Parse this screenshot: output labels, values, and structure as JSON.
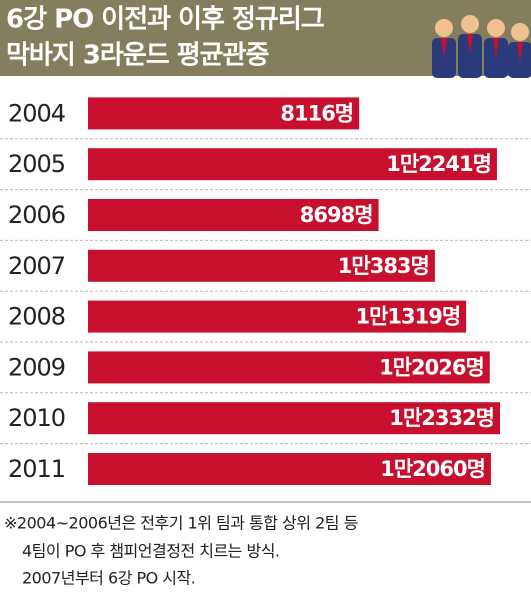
{
  "chart_data": {
    "type": "bar",
    "orientation": "horizontal",
    "title": [
      "6강 PO 이전과 이후 정규리그",
      "막바지 3라운드 평균관중"
    ],
    "categories": [
      "2004",
      "2005",
      "2006",
      "2007",
      "2008",
      "2009",
      "2010",
      "2011"
    ],
    "values": [
      8116,
      12241,
      8698,
      10383,
      11319,
      12026,
      12332,
      12060
    ],
    "value_labels": [
      "8116명",
      "1만2241명",
      "8698명",
      "1만383명",
      "1만1319명",
      "1만2026명",
      "1만2332명",
      "1만2060명"
    ],
    "color": "#c8102e",
    "note": [
      "※2004~2006년은 전후기 1위 팀과 통합 상위 2팀 등",
      "4팀이 PO 후 챔피언결정전 치르는 방식.",
      "2007년부터 6강 PO 시작."
    ]
  }
}
